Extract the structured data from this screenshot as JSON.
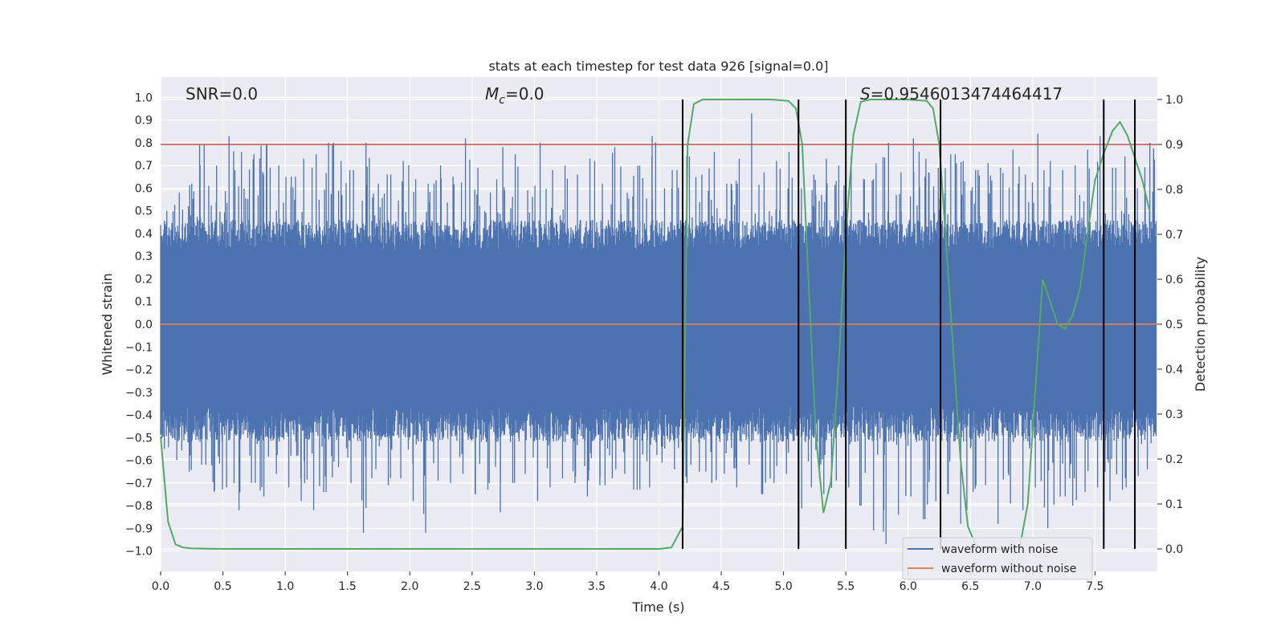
{
  "chart_data": {
    "type": "line",
    "title": "stats at each timestep for test data 926 [signal=0.0]",
    "xlabel": "Time (s)",
    "ylabel": "Whitened strain",
    "y2label": "Detection probability",
    "xlim": [
      0.0,
      8.0
    ],
    "ylim": [
      -1.09,
      1.09
    ],
    "y2lim": [
      -0.05,
      1.05
    ],
    "xticks": [
      "0.0",
      "0.5",
      "1.0",
      "1.5",
      "2.0",
      "2.5",
      "3.0",
      "3.5",
      "4.0",
      "4.5",
      "5.0",
      "5.5",
      "6.0",
      "6.5",
      "7.0",
      "7.5"
    ],
    "yticks": [
      "1.0",
      "0.9",
      "0.8",
      "0.7",
      "0.6",
      "0.5",
      "0.4",
      "0.3",
      "0.2",
      "0.1",
      "0.0",
      "-0.1",
      "-0.2",
      "-0.3",
      "-0.4",
      "-0.5",
      "-0.6",
      "-0.7",
      "-0.8",
      "-0.9",
      "-1.0"
    ],
    "y2ticks": [
      "1.0",
      "0.9",
      "0.8",
      "0.7",
      "0.6",
      "0.5",
      "0.4",
      "0.3",
      "0.2",
      "0.1",
      "0.0"
    ],
    "annotations": {
      "snr": "SNR=0.0",
      "mc_symbol": "M",
      "mc_sub": "c",
      "mc_value": "=0.0",
      "s_symbol": "S",
      "s_value": "=0.9546013474464417"
    },
    "threshold": 0.9,
    "vlines": [
      4.19,
      5.12,
      5.5,
      6.26,
      7.57,
      7.82
    ],
    "noise_envelope": {
      "upper_peaks": [
        0.5,
        0.58,
        0.62,
        0.79,
        0.7,
        0.83,
        0.76,
        0.75,
        0.79,
        0.7,
        0.65,
        0.73,
        0.75,
        0.8,
        0.72,
        0.68,
        0.8,
        0.62,
        0.66,
        0.72,
        0.64,
        0.62,
        0.7,
        0.65,
        0.82,
        0.69,
        0.58,
        0.78,
        0.75,
        0.59,
        0.8,
        0.68,
        0.7,
        0.66,
        0.73,
        0.62,
        0.78,
        0.58,
        0.7,
        0.83,
        0.6,
        0.68,
        0.74,
        0.66,
        0.76,
        0.62,
        0.73,
        0.93,
        0.67,
        0.72,
        0.76,
        0.6,
        0.66,
        0.73,
        0.7,
        0.74,
        0.64,
        0.71,
        0.8,
        0.67,
        0.82,
        0.73,
        0.69,
        0.75,
        0.72,
        0.68,
        0.71,
        0.69,
        0.77,
        0.66,
        0.84,
        0.72,
        0.68,
        0.7,
        0.77,
        0.83,
        0.69,
        0.74,
        0.6,
        0.8
      ],
      "lower_peaks": [
        -0.55,
        -0.6,
        -0.65,
        -0.62,
        -0.74,
        -0.72,
        -0.82,
        -0.7,
        -0.76,
        -0.66,
        -0.72,
        -0.78,
        -0.82,
        -0.74,
        -0.63,
        -0.7,
        -0.92,
        -0.64,
        -0.71,
        -0.68,
        -0.78,
        -0.92,
        -0.69,
        -0.7,
        -0.66,
        -0.75,
        -0.73,
        -0.83,
        -0.7,
        -0.66,
        -0.78,
        -0.72,
        -0.68,
        -0.7,
        -0.76,
        -0.71,
        -0.68,
        -0.66,
        -0.73,
        -0.72,
        -0.61,
        -0.64,
        -0.7,
        -0.65,
        -0.7,
        -0.66,
        -0.72,
        -0.62,
        -0.75,
        -0.7,
        -0.66,
        -0.98,
        -0.72,
        -0.75,
        -0.69,
        -0.72,
        -0.8,
        -0.91,
        -0.97,
        -0.84,
        -0.76,
        -0.86,
        -0.78,
        -0.75,
        -0.88,
        -0.74,
        -0.71,
        -0.88,
        -0.79,
        -0.82,
        -0.72,
        -0.9,
        -0.76,
        -0.8,
        -0.74,
        -0.72,
        -0.78,
        -0.73,
        -0.69,
        -0.64
      ]
    },
    "series": [
      {
        "name": "waveform with noise",
        "color": "#4c72b0",
        "x": [
          0.0,
          7.99
        ],
        "y": [
          0.0,
          0.0
        ]
      },
      {
        "name": "waveform without noise",
        "color": "#dd8452",
        "x": [
          0.0,
          8.0
        ],
        "y": [
          0.0,
          0.0
        ]
      },
      {
        "name": "detection probability",
        "color": "#55a868",
        "x": [
          0.0,
          0.06,
          0.12,
          0.18,
          0.25,
          0.5,
          1.0,
          1.5,
          2.0,
          2.5,
          3.0,
          3.5,
          4.0,
          4.1,
          4.19,
          4.23,
          4.28,
          4.35,
          4.5,
          4.7,
          4.9,
          5.04,
          5.1,
          5.15,
          5.2,
          5.26,
          5.32,
          5.38,
          5.44,
          5.5,
          5.56,
          5.62,
          5.7,
          5.8,
          6.0,
          6.15,
          6.2,
          6.25,
          6.3,
          6.36,
          6.42,
          6.48,
          6.54,
          6.6,
          6.66,
          6.72,
          6.78,
          6.84,
          6.9,
          6.96,
          7.02,
          7.08,
          7.14,
          7.2,
          7.26,
          7.32,
          7.38,
          7.44,
          7.5,
          7.57,
          7.64,
          7.7,
          7.76,
          7.82,
          7.88,
          7.94
        ],
        "y": [
          0.25,
          0.06,
          0.01,
          0.003,
          0.001,
          0.0,
          0.0,
          0.0,
          0.0,
          0.0,
          0.0,
          0.0,
          0.0,
          0.003,
          0.05,
          0.9,
          0.99,
          1.0,
          1.0,
          1.0,
          1.0,
          0.997,
          0.98,
          0.9,
          0.6,
          0.25,
          0.08,
          0.15,
          0.4,
          0.7,
          0.92,
          0.995,
          1.0,
          1.0,
          1.0,
          0.997,
          0.98,
          0.9,
          0.7,
          0.45,
          0.2,
          0.05,
          0.01,
          0.003,
          0.0,
          0.0,
          0.0,
          0.0,
          0.01,
          0.1,
          0.35,
          0.6,
          0.55,
          0.5,
          0.49,
          0.52,
          0.58,
          0.7,
          0.82,
          0.88,
          0.93,
          0.95,
          0.92,
          0.87,
          0.82,
          0.75
        ]
      }
    ],
    "legend": {
      "location": "lower-right",
      "entries": [
        "waveform with noise",
        "waveform without noise"
      ]
    },
    "colors": {
      "background": "#eaeaf2",
      "grid": "#ffffff",
      "noise": "#4c72b0",
      "clean": "#dd8452",
      "probability": "#55a868",
      "threshold": "#c44e52",
      "vline": "#000000"
    }
  }
}
